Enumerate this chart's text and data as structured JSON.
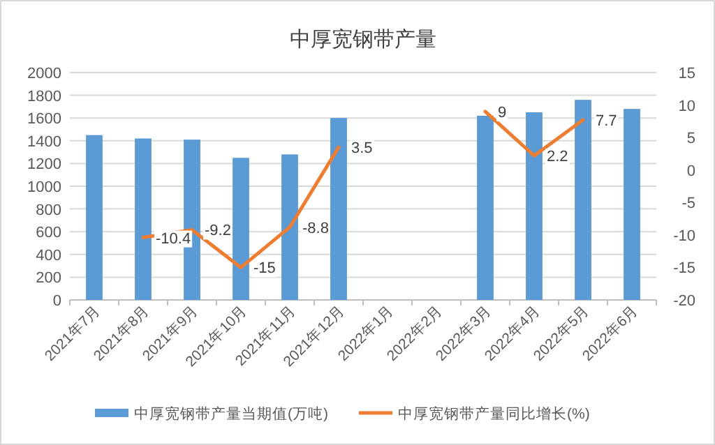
{
  "chart_data": {
    "type": "bar",
    "title": "中厚宽钢带产量",
    "categories": [
      "2021年7月",
      "2021年8月",
      "2021年9月",
      "2021年10月",
      "2021年11月",
      "2021年12月",
      "2022年1月",
      "2022年2月",
      "2022年3月",
      "2022年4月",
      "2022年5月",
      "2022年6月"
    ],
    "series": [
      {
        "name": "中厚宽钢带产量当期值(万吨)",
        "color": "#5b9bd5",
        "values": [
          1450,
          1420,
          1410,
          1250,
          1280,
          1600,
          null,
          null,
          1620,
          1650,
          1760,
          1680
        ]
      },
      {
        "name": "中厚宽钢带产量同比增长(%)",
        "color": "#ed7d31",
        "type": "line",
        "axis": "y2",
        "values": [
          null,
          -10.4,
          -9.2,
          -15,
          -8.8,
          3.5,
          null,
          null,
          9,
          2.2,
          7.7,
          null
        ],
        "value_labels": [
          null,
          "-10.4",
          "-9.2",
          "-15",
          "-8.8",
          "3.5",
          null,
          null,
          "9",
          "2.2",
          "7.7",
          null
        ]
      }
    ],
    "ylim": [
      0,
      2000
    ],
    "yticks": [
      0,
      200,
      400,
      600,
      800,
      1000,
      1200,
      1400,
      1600,
      1800,
      2000
    ],
    "y2lim": [
      -20,
      15
    ],
    "y2ticks": [
      -20,
      -15,
      -10,
      -5,
      0,
      5,
      10,
      15
    ],
    "grid": "y",
    "legend": "bottom",
    "marker": "none"
  }
}
